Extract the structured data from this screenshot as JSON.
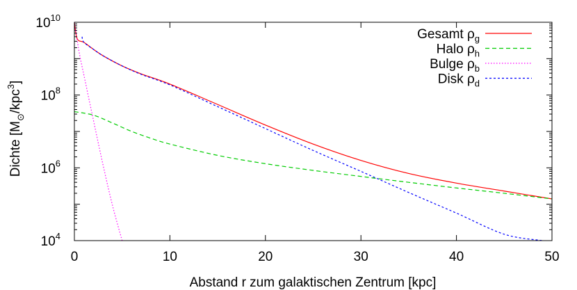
{
  "chart_data": {
    "type": "line",
    "xlabel": "Abstand r zum galaktischen Zentrum [kpc]",
    "ylabel": {
      "prefix": "Dichte [M",
      "sub": "⊙",
      "mid": "/kpc",
      "sup": "3",
      "suffix": "]"
    },
    "xlim": [
      0,
      50
    ],
    "ylim": [
      10000,
      10000000000
    ],
    "yscale": "log",
    "grid": false,
    "legend_position": "top-right",
    "x_ticks": [
      "0",
      "10",
      "20",
      "30",
      "40",
      "50"
    ],
    "y_ticks": [
      {
        "base": "10",
        "exp": "4"
      },
      {
        "base": "10",
        "exp": "6"
      },
      {
        "base": "10",
        "exp": "8"
      },
      {
        "base": "10",
        "exp": "10"
      }
    ],
    "series": [
      {
        "name_main": "Gesamt ρ",
        "name_sub": "g",
        "color": "#ff0000",
        "dash": "solid",
        "x": [
          0,
          0.3,
          1,
          2,
          3,
          5,
          7,
          10,
          15,
          20,
          25,
          30,
          35,
          40,
          45,
          50
        ],
        "y": [
          10000000000,
          3500000000,
          2800000000,
          1800000000,
          1200000000,
          630000000,
          380000000,
          200000000,
          55000000,
          15000000,
          4500000,
          1600000,
          700000,
          380000,
          230000,
          140000
        ]
      },
      {
        "name_main": "Halo ρ",
        "name_sub": "h",
        "color": "#00cc00",
        "dash": "dashed",
        "x": [
          0,
          2,
          4,
          6,
          8,
          10,
          15,
          20,
          25,
          30,
          35,
          40,
          45,
          50
        ],
        "y": [
          35000000,
          28000000,
          17000000,
          10000000,
          6500000,
          4500000,
          2200000,
          1300000,
          850000,
          580000,
          400000,
          280000,
          200000,
          140000
        ]
      },
      {
        "name_main": "Bulge ρ",
        "name_sub": "b",
        "color": "#ff00ff",
        "dash": "dotted",
        "x": [
          0,
          0.5,
          1,
          2,
          3,
          4,
          5
        ],
        "y": [
          10000000000,
          1500000000,
          350000000,
          20000000,
          1200000,
          90000,
          10000
        ]
      },
      {
        "name_main": "Disk ρ",
        "name_sub": "d",
        "color": "#0000ff",
        "dash": "shortdash",
        "x": [
          0.8,
          1,
          2,
          3,
          5,
          7,
          10,
          15,
          20,
          25,
          30,
          35,
          40,
          45,
          49
        ],
        "y": [
          4000000000,
          2800000000,
          1800000000,
          1200000000,
          630000000,
          370000000,
          190000000,
          48000000,
          12000000,
          3000000,
          800000,
          210000,
          57000,
          15000,
          10000
        ]
      }
    ]
  }
}
